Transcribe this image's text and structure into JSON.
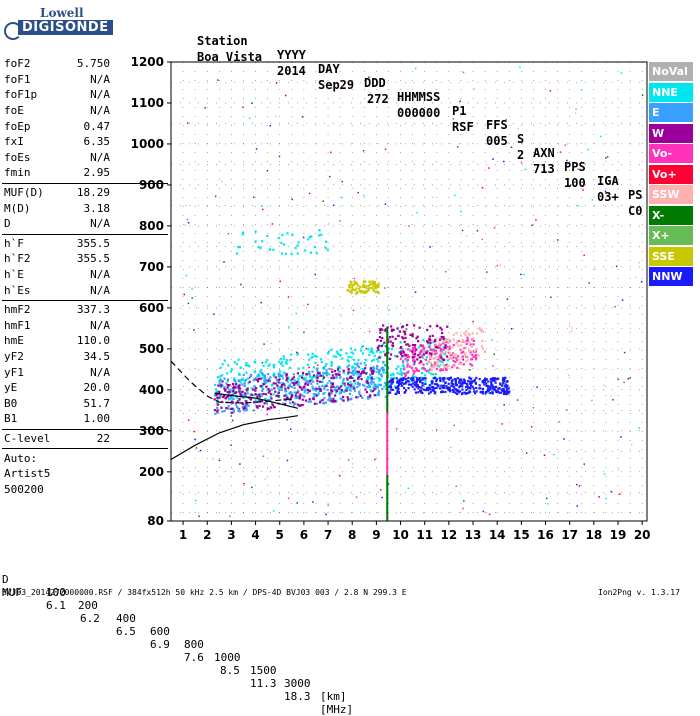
{
  "logo": {
    "line1": "Lowell",
    "line2": "DIGISONDE"
  },
  "header": {
    "labels": [
      "Station",
      "YYYY",
      "DAY",
      "DDD",
      "HHMMSS",
      "P1",
      "FFS",
      "S",
      "AXN",
      "PPS",
      "IGA",
      "PS"
    ],
    "values": [
      "Boa Vista",
      "2014",
      "Sep29",
      "272",
      "000000",
      "RSF",
      "005",
      "2",
      "713",
      "100",
      "03+",
      "C0"
    ]
  },
  "params": {
    "group1": [
      {
        "label": "foF2",
        "value": "5.750"
      },
      {
        "label": "foF1",
        "value": "N/A"
      },
      {
        "label": "foF1p",
        "value": "N/A"
      },
      {
        "label": "foE",
        "value": "N/A"
      },
      {
        "label": "foEp",
        "value": "0.47"
      },
      {
        "label": "fxI",
        "value": "6.35"
      },
      {
        "label": "foEs",
        "value": "N/A"
      },
      {
        "label": "fmin",
        "value": "2.95"
      }
    ],
    "group2": [
      {
        "label": "MUF(D)",
        "value": "18.29"
      },
      {
        "label": "M(D)",
        "value": "3.18"
      },
      {
        "label": "D",
        "value": "N/A"
      }
    ],
    "group3": [
      {
        "label": "h`F",
        "value": "355.5"
      },
      {
        "label": "h`F2",
        "value": "355.5"
      },
      {
        "label": "h`E",
        "value": "N/A"
      },
      {
        "label": "h`Es",
        "value": "N/A"
      }
    ],
    "group4": [
      {
        "label": "hmF2",
        "value": "337.3"
      },
      {
        "label": "hmF1",
        "value": "N/A"
      },
      {
        "label": "hmE",
        "value": "110.0"
      },
      {
        "label": "yF2",
        "value": "34.5"
      },
      {
        "label": "yF1",
        "value": "N/A"
      },
      {
        "label": "yE",
        "value": "20.0"
      },
      {
        "label": "B0",
        "value": "51.7"
      },
      {
        "label": "B1",
        "value": "1.00"
      }
    ],
    "group5": [
      {
        "label": "C-level",
        "value": "22"
      }
    ],
    "auto": [
      "Auto:",
      "Artist5",
      "500200"
    ]
  },
  "legend": [
    {
      "label": "NoVal",
      "color": "#b0b0b0"
    },
    {
      "label": "NNE",
      "color": "#00e5ee"
    },
    {
      "label": "E",
      "color": "#3aa0ff"
    },
    {
      "label": "W",
      "color": "#9b009b"
    },
    {
      "label": "Vo-",
      "color": "#ff33bb"
    },
    {
      "label": "Vo+",
      "color": "#ff0033"
    },
    {
      "label": "SSW",
      "color": "#ffb0b0"
    },
    {
      "label": "X-",
      "color": "#007a00"
    },
    {
      "label": "X+",
      "color": "#66bb55"
    },
    {
      "label": "SSE",
      "color": "#c8c800"
    },
    {
      "label": "NNW",
      "color": "#1a1aff"
    }
  ],
  "footer": {
    "d_label": "D",
    "d_values": [
      "100",
      "200",
      "400",
      "600",
      "800",
      "1000",
      "1500",
      "3000"
    ],
    "d_unit": "[km]",
    "muf_label": "MUF",
    "muf_values": [
      "6.1",
      "6.2",
      "6.5",
      "6.9",
      "7.6",
      "8.5",
      "11.3",
      "18.3"
    ],
    "muf_unit": "[MHz]",
    "file_info": "BVJ03_2014272000000.RSF / 384fx512h 50 kHz 2.5 km / DPS-4D BVJ03 003 / 2.8 N 299.3 E",
    "version": "Ion2Png v. 1.3.17"
  },
  "chart_data": {
    "type": "scatter",
    "x_ticks": [
      1,
      2,
      3,
      4,
      5,
      6,
      7,
      8,
      9,
      10,
      11,
      12,
      13,
      14,
      15,
      16,
      17,
      18,
      19,
      20
    ],
    "y_ticks": [
      80,
      200,
      300,
      400,
      500,
      600,
      700,
      800,
      900,
      1000,
      1100,
      1200
    ],
    "xlim": [
      0.5,
      20.2
    ],
    "ylim": [
      80,
      1200
    ],
    "grid": true,
    "fof2_marker_mhz": 9.45,
    "clusters": [
      {
        "name": "NNE",
        "color": "#00e5ee",
        "f": [
          2.3,
          12.0
        ],
        "h": [
          360,
          470
        ],
        "slope": 6,
        "n": 420
      },
      {
        "name": "E",
        "color": "#3aa0ff",
        "f": [
          2.3,
          9.5
        ],
        "h": [
          340,
          430
        ],
        "slope": 6,
        "n": 380
      },
      {
        "name": "W",
        "color": "#9b009b",
        "f": [
          2.3,
          9.0
        ],
        "h": [
          340,
          420
        ],
        "slope": 6,
        "n": 260
      },
      {
        "name": "NNW",
        "color": "#1a1aff",
        "f": [
          9.5,
          14.5
        ],
        "h": [
          390,
          430
        ],
        "slope": 0,
        "n": 360
      },
      {
        "name": "Vo-",
        "color": "#ff33bb",
        "f": [
          10.0,
          13.2
        ],
        "h": [
          430,
          500
        ],
        "slope": 10,
        "n": 160
      },
      {
        "name": "SSW",
        "color": "#ffb0b0",
        "f": [
          11.0,
          13.5
        ],
        "h": [
          440,
          520
        ],
        "slope": 15,
        "n": 110
      },
      {
        "name": "SSE",
        "color": "#c8c800",
        "f": [
          7.8,
          9.1
        ],
        "h": [
          635,
          665
        ],
        "slope": 0,
        "n": 80
      },
      {
        "name": "NNE-upper",
        "color": "#00e5ee",
        "f": [
          3.0,
          7.0
        ],
        "h": [
          730,
          790
        ],
        "slope": 0,
        "n": 40
      },
      {
        "name": "W-upper",
        "color": "#9b009b",
        "f": [
          9.0,
          12.0
        ],
        "h": [
          470,
          560
        ],
        "slope": 0,
        "n": 120
      }
    ],
    "trace_solid": [
      [
        0.5,
        230
      ],
      [
        1.5,
        265
      ],
      [
        2.5,
        295
      ],
      [
        3.5,
        315
      ],
      [
        4.5,
        327
      ],
      [
        5.3,
        333
      ],
      [
        5.75,
        337
      ]
    ],
    "trace_dashed": [
      [
        0.5,
        470
      ],
      [
        1.3,
        420
      ],
      [
        2.0,
        385
      ],
      [
        2.5,
        370
      ],
      [
        3.5,
        368
      ],
      [
        4.5,
        372
      ],
      [
        5.5,
        378
      ]
    ],
    "trace_profile": [
      [
        2.3,
        392
      ],
      [
        3.0,
        386
      ],
      [
        4.0,
        380
      ],
      [
        5.0,
        366
      ],
      [
        5.75,
        355
      ]
    ]
  }
}
